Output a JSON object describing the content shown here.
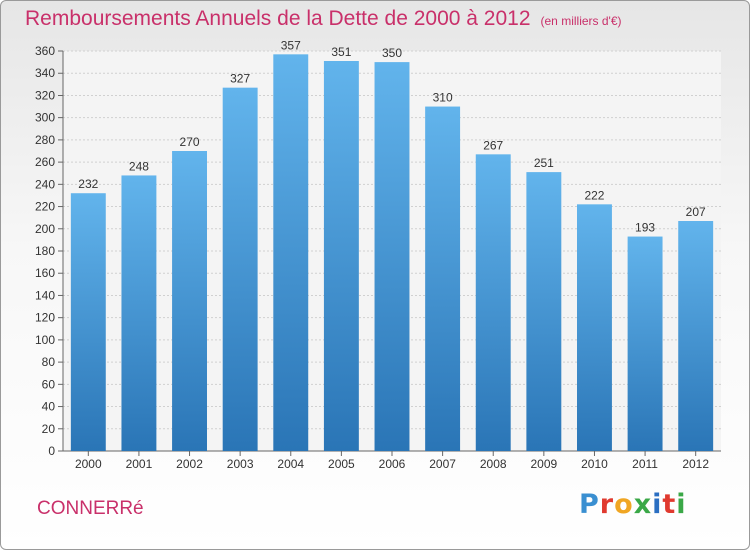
{
  "title": "Remboursements Annuels de la Dette de 2000 à 2012",
  "unit_note": "(en milliers d'€)",
  "town": "CONNERRé",
  "logo": {
    "letters": [
      "P",
      "r",
      "o",
      "x",
      "i",
      "t",
      "i"
    ],
    "colors": [
      "#3a8fd1",
      "#e03a2f",
      "#f0a623",
      "#3aa847",
      "#2b6fc2",
      "#e03a2f",
      "#3aa847"
    ]
  },
  "colors": {
    "bar_top": "#62b4ec",
    "bar_bottom": "#2a75b6",
    "title": "#c9306a"
  },
  "chart_data": {
    "type": "bar",
    "categories": [
      "2000",
      "2001",
      "2002",
      "2003",
      "2004",
      "2005",
      "2006",
      "2007",
      "2008",
      "2009",
      "2010",
      "2011",
      "2012"
    ],
    "values": [
      232,
      248,
      270,
      327,
      357,
      351,
      350,
      310,
      267,
      251,
      222,
      193,
      207
    ],
    "ylim": [
      0,
      360
    ],
    "ytick_step": 20,
    "grid": true
  }
}
